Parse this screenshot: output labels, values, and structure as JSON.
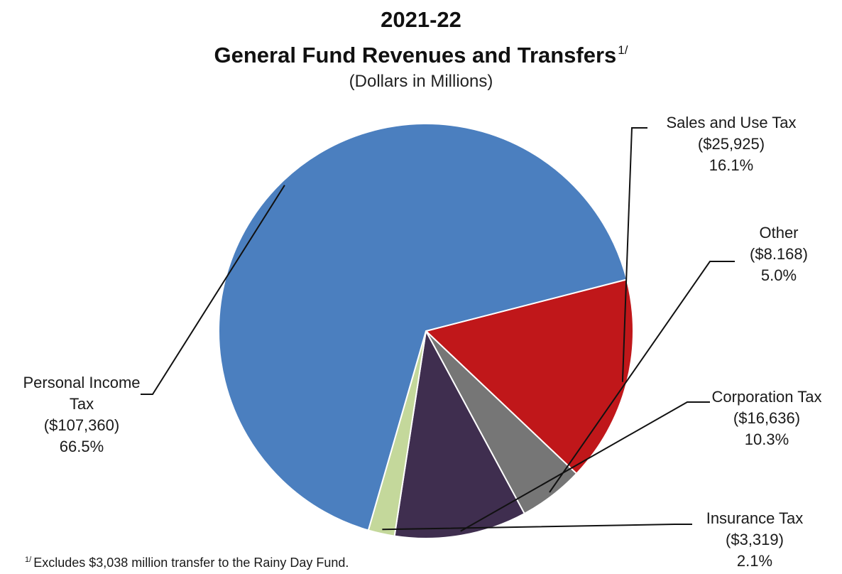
{
  "chart_data": {
    "type": "pie",
    "title": "2021-22",
    "title_line2": "General Fund Revenues and Transfers",
    "title_superscript": "1/",
    "subtitle": "(Dollars in Millions)",
    "units": "Dollars in Millions",
    "slices": [
      {
        "label": "Sales and Use Tax",
        "amount_text": "($25,925)",
        "value": 25925,
        "percent_text": "16.1%",
        "percent": 16.1,
        "color": "#c0171a"
      },
      {
        "label": "Other",
        "amount_text": "($8.168)",
        "value": 8168,
        "percent_text": "5.0%",
        "percent": 5.0,
        "color": "#767676"
      },
      {
        "label": "Corporation Tax",
        "amount_text": "($16,636)",
        "value": 16636,
        "percent_text": "10.3%",
        "percent": 10.3,
        "color": "#3f2e4f"
      },
      {
        "label": "Insurance Tax",
        "amount_text": "($3,319)",
        "value": 3319,
        "percent_text": "2.1%",
        "percent": 2.1,
        "color": "#c4d89b"
      },
      {
        "label": "Personal Income Tax",
        "label_lines": [
          "Personal Income",
          "Tax"
        ],
        "amount_text": "($107,360)",
        "value": 107360,
        "percent_text": "66.5%",
        "percent": 66.5,
        "color": "#4b7fbf"
      }
    ],
    "footnote_marker": "1/",
    "footnote": "Excludes $3,038 million transfer to the Rainy Day Fund."
  }
}
